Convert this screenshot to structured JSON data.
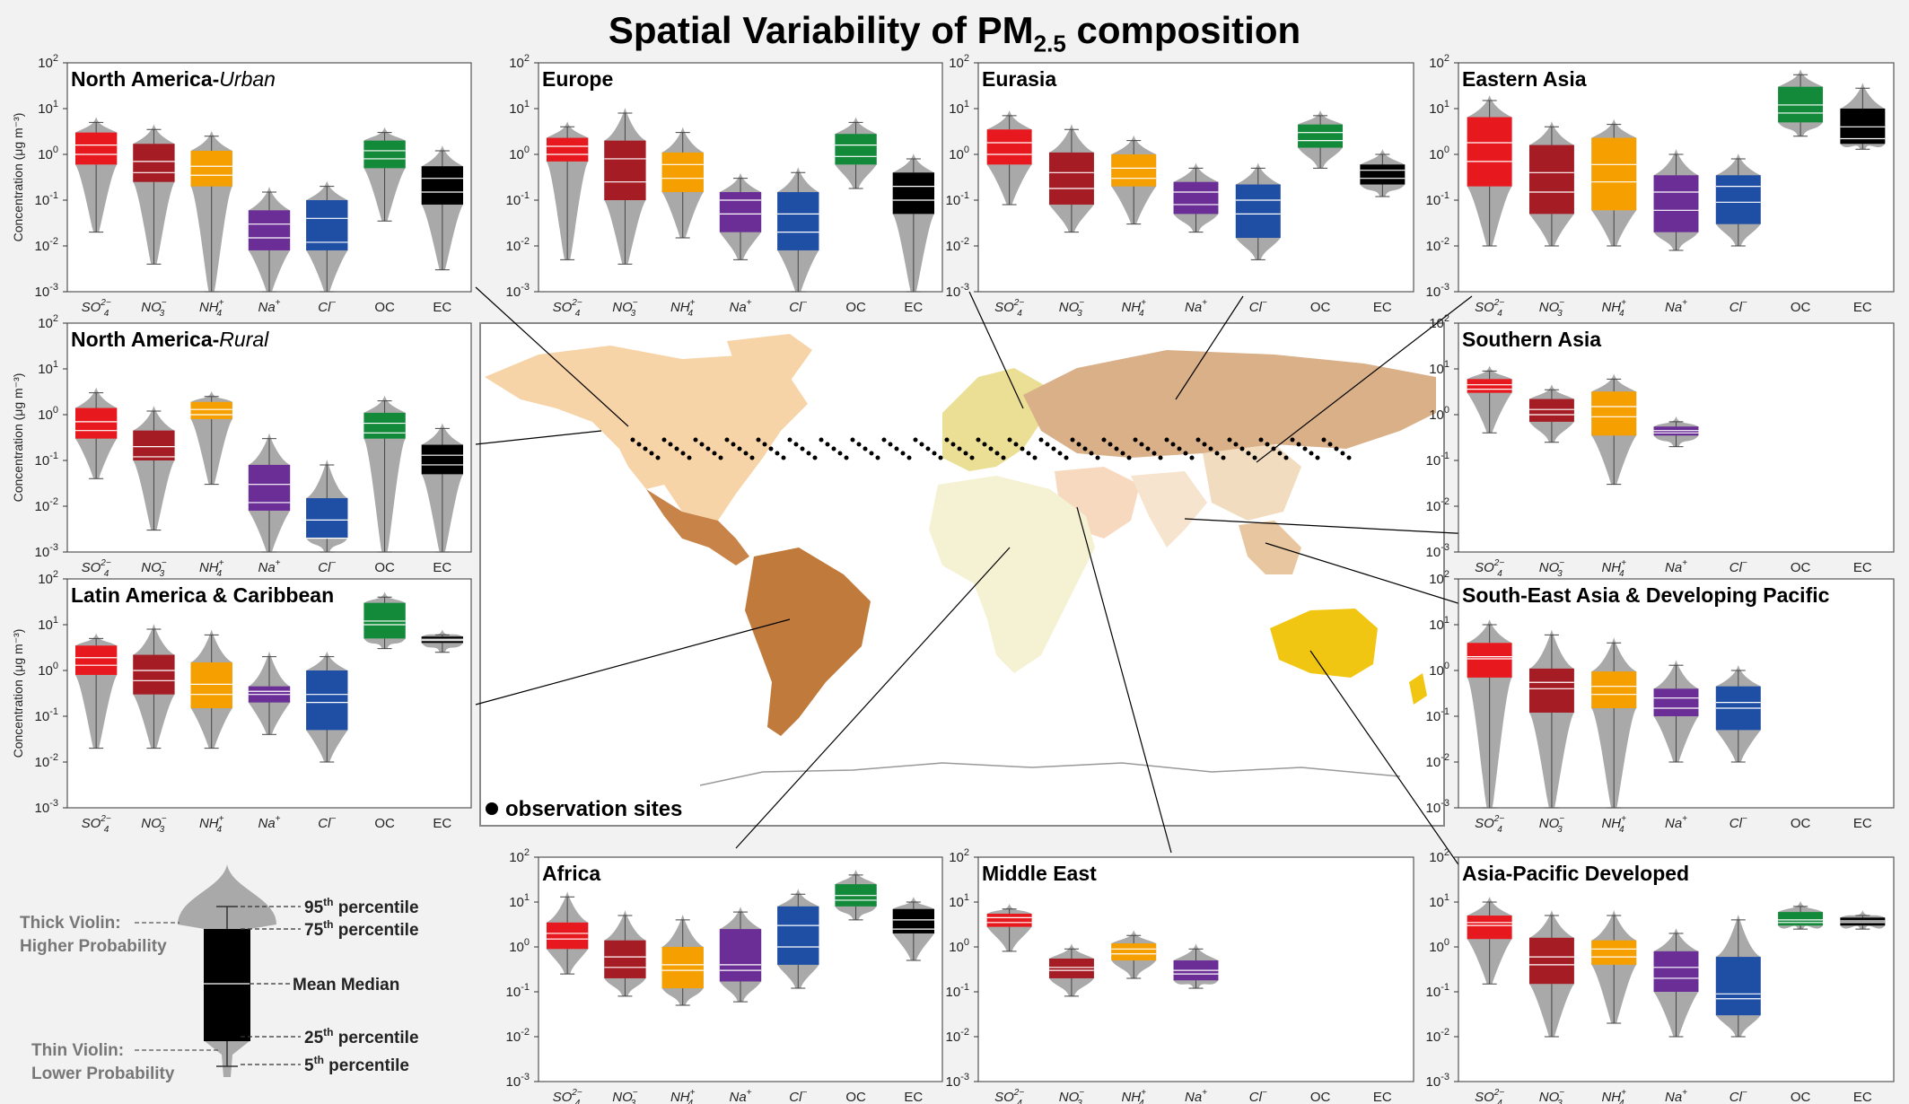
{
  "title": {
    "prefix": "Spatial Variability of PM",
    "sub": "2.5",
    "suffix": " composition"
  },
  "colors": {
    "SO4": "#e8191e",
    "NO3": "#a51c24",
    "NH4": "#f5a000",
    "Na": "#6a2e96",
    "Cl": "#1f4ea5",
    "OC": "#128a3a",
    "EC": "#000000",
    "tail": "#a9a9a9"
  },
  "legend_text": {
    "observation_sites": "observation sites"
  },
  "schematic": {
    "labels": {
      "p95": "95",
      "p95_suffix": "th",
      "p95_word": " percentile",
      "p75": "75",
      "p75_suffix": "th",
      "p75_word": " percentile",
      "mean_median": "Mean Median",
      "p25": "25",
      "p25_suffix": "th",
      "p25_word": " percentile",
      "p5": "5",
      "p5_suffix": "th",
      "p5_word": " percentile",
      "thick1": "Thick Violin:",
      "thick2": "Higher Probability",
      "thin1": "Thin Violin:",
      "thin2": "Lower Probability"
    }
  },
  "chart_data": [
    {
      "type": "violin-box",
      "title": "North America-",
      "title_italic": "Urban",
      "ylabel": "Concentration (μg m⁻³)",
      "y_scale": "log",
      "ylim": [
        0.001,
        100
      ],
      "categories": [
        "SO4",
        "NO3",
        "NH4",
        "Na",
        "Cl",
        "OC",
        "EC"
      ],
      "stats": [
        [
          0.02,
          0.6,
          1.0,
          1.6,
          3.0,
          5.0
        ],
        [
          0.004,
          0.25,
          0.4,
          0.7,
          1.7,
          3.5
        ],
        [
          0.001,
          0.2,
          0.35,
          0.55,
          1.2,
          2.5
        ],
        [
          0.001,
          0.008,
          0.015,
          0.03,
          0.06,
          0.15
        ],
        [
          0.001,
          0.008,
          0.012,
          0.04,
          0.1,
          0.2
        ],
        [
          0.035,
          0.5,
          0.8,
          1.2,
          2.0,
          3.0
        ],
        [
          0.003,
          0.08,
          0.15,
          0.3,
          0.55,
          1.2
        ]
      ]
    },
    {
      "type": "violin-box",
      "title": "Europe",
      "y_scale": "log",
      "ylim": [
        0.001,
        100
      ],
      "categories": [
        "SO4",
        "NO3",
        "NH4",
        "Na",
        "Cl",
        "OC",
        "EC"
      ],
      "stats": [
        [
          0.005,
          0.7,
          1.0,
          1.5,
          2.3,
          4.0
        ],
        [
          0.004,
          0.1,
          0.25,
          0.8,
          2.0,
          8.0
        ],
        [
          0.015,
          0.15,
          0.3,
          0.6,
          1.1,
          3.0
        ],
        [
          0.005,
          0.02,
          0.05,
          0.1,
          0.15,
          0.3
        ],
        [
          0.001,
          0.008,
          0.02,
          0.05,
          0.15,
          0.4
        ],
        [
          0.18,
          0.6,
          0.9,
          1.6,
          2.8,
          5.0
        ],
        [
          0.001,
          0.05,
          0.1,
          0.2,
          0.4,
          0.8
        ]
      ]
    },
    {
      "type": "violin-box",
      "title": "Eurasia",
      "y_scale": "log",
      "ylim": [
        0.001,
        100
      ],
      "categories": [
        "SO4",
        "NO3",
        "NH4",
        "Na",
        "Cl",
        "OC",
        "EC"
      ],
      "stats": [
        [
          0.08,
          0.6,
          1.0,
          1.8,
          3.5,
          7.0
        ],
        [
          0.02,
          0.08,
          0.18,
          0.4,
          1.1,
          3.5
        ],
        [
          0.03,
          0.2,
          0.3,
          0.5,
          1.0,
          2.0
        ],
        [
          0.02,
          0.05,
          0.08,
          0.15,
          0.25,
          0.5
        ],
        [
          0.005,
          0.015,
          0.05,
          0.1,
          0.22,
          0.5
        ],
        [
          0.5,
          1.4,
          2.0,
          3.0,
          4.5,
          7.0
        ],
        [
          0.12,
          0.22,
          0.3,
          0.45,
          0.6,
          1.0
        ]
      ]
    },
    {
      "type": "violin-box",
      "title": "Eastern Asia",
      "y_scale": "log",
      "ylim": [
        0.001,
        100
      ],
      "categories": [
        "SO4",
        "NO3",
        "NH4",
        "Na",
        "Cl",
        "OC",
        "EC"
      ],
      "stats": [
        [
          0.01,
          0.2,
          0.7,
          1.8,
          6.5,
          15.0
        ],
        [
          0.01,
          0.05,
          0.15,
          0.4,
          1.6,
          4.0
        ],
        [
          0.01,
          0.06,
          0.25,
          0.6,
          2.3,
          4.5
        ],
        [
          0.008,
          0.02,
          0.06,
          0.15,
          0.35,
          1.0
        ],
        [
          0.01,
          0.03,
          0.09,
          0.2,
          0.35,
          0.8
        ],
        [
          2.5,
          5.0,
          8.0,
          12.0,
          30.0,
          55.0
        ],
        [
          1.3,
          1.7,
          2.2,
          4.0,
          10.0,
          28.0
        ]
      ]
    },
    {
      "type": "violin-box",
      "title": "North America-",
      "title_italic": "Rural",
      "ylabel": "Concentration (μg m⁻³)",
      "y_scale": "log",
      "ylim": [
        0.001,
        100
      ],
      "categories": [
        "SO4",
        "NO3",
        "NH4",
        "Na",
        "Cl",
        "OC",
        "EC"
      ],
      "stats": [
        [
          0.04,
          0.3,
          0.45,
          0.7,
          1.4,
          3.0
        ],
        [
          0.003,
          0.1,
          0.12,
          0.2,
          0.45,
          1.2
        ],
        [
          0.03,
          0.8,
          1.0,
          1.3,
          1.9,
          2.5
        ],
        [
          0.001,
          0.008,
          0.012,
          0.03,
          0.08,
          0.3
        ],
        [
          0.001,
          0.002,
          0.002,
          0.005,
          0.015,
          0.08
        ],
        [
          0.001,
          0.3,
          0.4,
          0.65,
          1.1,
          2.0
        ],
        [
          0.001,
          0.05,
          0.08,
          0.13,
          0.22,
          0.5
        ]
      ]
    },
    {
      "type": "violin-box",
      "title": "Southern Asia",
      "y_scale": "log",
      "ylim": [
        0.001,
        100
      ],
      "categories": [
        "SO4",
        "NO3",
        "NH4",
        "Na",
        "Cl",
        "OC",
        "EC"
      ],
      "stats": [
        [
          0.4,
          3.0,
          3.6,
          4.5,
          6.0,
          9.0
        ],
        [
          0.25,
          0.7,
          1.0,
          1.3,
          2.2,
          3.5
        ],
        [
          0.03,
          0.35,
          0.9,
          1.5,
          3.2,
          6.0
        ],
        [
          0.2,
          0.35,
          0.4,
          0.45,
          0.55,
          0.7
        ],
        null,
        null,
        null
      ]
    },
    {
      "type": "violin-box",
      "title": "Latin America & Caribbean",
      "ylabel": "Concentration (μg m⁻³)",
      "y_scale": "log",
      "ylim": [
        0.001,
        100
      ],
      "categories": [
        "SO4",
        "NO3",
        "NH4",
        "Na",
        "Cl",
        "OC",
        "EC"
      ],
      "stats": [
        [
          0.02,
          0.8,
          1.3,
          1.9,
          3.5,
          5.0
        ],
        [
          0.02,
          0.3,
          0.6,
          1.0,
          2.2,
          8.0
        ],
        [
          0.02,
          0.15,
          0.3,
          0.5,
          1.5,
          6.0
        ],
        [
          0.04,
          0.2,
          0.3,
          0.35,
          0.45,
          2.0
        ],
        [
          0.01,
          0.05,
          0.2,
          0.3,
          1.0,
          2.0
        ],
        [
          3.0,
          5.0,
          10.0,
          12.0,
          30.0,
          40.0
        ],
        [
          2.5,
          4.0,
          4.5,
          4.8,
          5.5,
          6.0
        ]
      ]
    },
    {
      "type": "violin-box",
      "title": "South-East Asia & Developing Pacific",
      "y_scale": "log",
      "ylim": [
        0.001,
        100
      ],
      "categories": [
        "SO4",
        "NO3",
        "NH4",
        "Na",
        "Cl",
        "OC",
        "EC"
      ],
      "stats": [
        [
          0.001,
          0.7,
          1.8,
          2.0,
          4.0,
          10.0
        ],
        [
          0.001,
          0.12,
          0.4,
          0.55,
          1.1,
          6.0
        ],
        [
          0.001,
          0.15,
          0.3,
          0.45,
          0.95,
          4.0
        ],
        [
          0.01,
          0.1,
          0.15,
          0.25,
          0.4,
          1.3
        ],
        [
          0.01,
          0.05,
          0.15,
          0.2,
          0.45,
          1.0
        ],
        null,
        null
      ]
    },
    {
      "type": "violin-box",
      "title": "Africa",
      "y_scale": "log",
      "ylim": [
        0.001,
        100
      ],
      "categories": [
        "SO4",
        "NO3",
        "NH4",
        "Na",
        "Cl",
        "OC",
        "EC"
      ],
      "stats": [
        [
          0.25,
          0.9,
          1.5,
          2.0,
          3.5,
          13.0
        ],
        [
          0.08,
          0.2,
          0.35,
          0.6,
          1.4,
          5.0
        ],
        [
          0.05,
          0.12,
          0.3,
          0.4,
          1.0,
          4.0
        ],
        [
          0.06,
          0.17,
          0.3,
          0.4,
          2.5,
          6.0
        ],
        [
          0.12,
          0.4,
          1.0,
          3.0,
          8.0,
          15.0
        ],
        [
          4.0,
          8.0,
          11.0,
          14.0,
          25.0,
          40.0
        ],
        [
          0.5,
          2.0,
          2.5,
          4.0,
          7.0,
          10.0
        ]
      ]
    },
    {
      "type": "violin-box",
      "title": "Middle East",
      "y_scale": "log",
      "ylim": [
        0.001,
        100
      ],
      "categories": [
        "SO4",
        "NO3",
        "NH4",
        "Na",
        "Cl",
        "OC",
        "EC"
      ],
      "stats": [
        [
          0.8,
          2.8,
          3.5,
          4.5,
          5.5,
          7.0
        ],
        [
          0.08,
          0.2,
          0.3,
          0.35,
          0.55,
          0.9
        ],
        [
          0.2,
          0.5,
          0.7,
          0.9,
          1.2,
          1.8
        ],
        [
          0.12,
          0.18,
          0.25,
          0.3,
          0.5,
          0.9
        ],
        null,
        null,
        null
      ]
    },
    {
      "type": "violin-box",
      "title": "Asia-Pacific Developed",
      "y_scale": "log",
      "ylim": [
        0.001,
        100
      ],
      "categories": [
        "SO4",
        "NO3",
        "NH4",
        "Na",
        "Cl",
        "OC",
        "EC"
      ],
      "stats": [
        [
          0.15,
          1.5,
          3.0,
          3.5,
          5.0,
          10.0
        ],
        [
          0.01,
          0.15,
          0.4,
          0.6,
          1.6,
          5.0
        ],
        [
          0.02,
          0.4,
          0.6,
          0.9,
          1.4,
          5.0
        ],
        [
          0.01,
          0.1,
          0.2,
          0.35,
          0.8,
          2.0
        ],
        [
          0.01,
          0.03,
          0.07,
          0.09,
          0.6,
          4.0
        ],
        [
          2.5,
          3.0,
          3.5,
          4.0,
          6.0,
          8.0
        ],
        [
          2.5,
          3.0,
          3.5,
          3.8,
          4.5,
          5.0
        ]
      ]
    }
  ]
}
